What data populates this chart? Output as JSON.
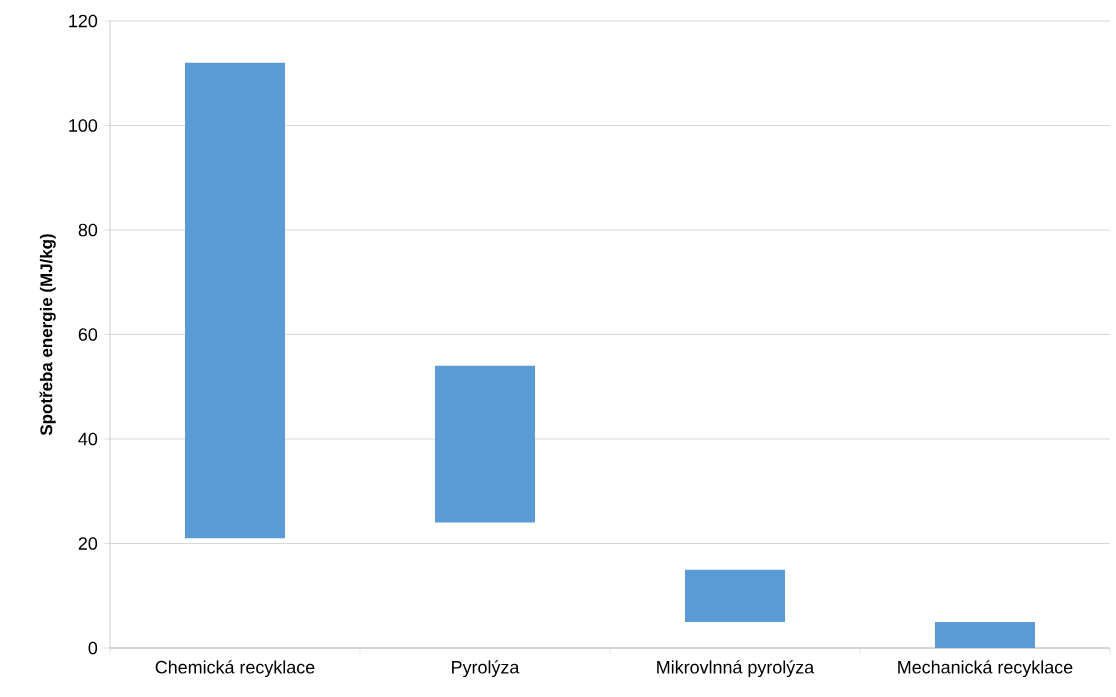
{
  "chart_data": {
    "type": "bar",
    "ylabel": "**Spotřeba energie (MJ/kg)**",
    "categories": [
      "Chemická recyklace",
      "Pyrolýza",
      "Mikrovlnná pyrolýza",
      "Mechanická recyklace"
    ],
    "base": [
      21,
      24,
      5,
      0
    ],
    "values": [
      91,
      30,
      10,
      5
    ],
    "color": "#5b9bd5",
    "ylim": [
      0,
      120
    ],
    "yticks": [
      0,
      20,
      40,
      60,
      80,
      100,
      120
    ],
    "grid": "y"
  }
}
